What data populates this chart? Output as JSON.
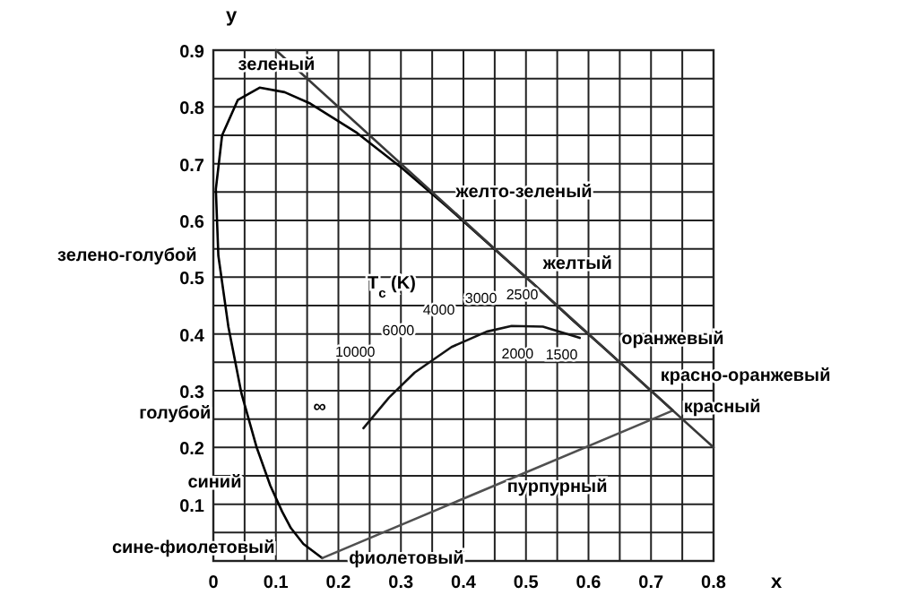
{
  "chart_data": {
    "type": "line",
    "xlabel": "x",
    "ylabel": "y",
    "xlim": [
      0,
      0.8
    ],
    "ylim": [
      0,
      0.9
    ],
    "xticks": [
      0,
      {
        "value": 0.05,
        "label": null
      },
      0.1,
      {
        "value": 0.15,
        "label": null
      },
      0.2,
      {
        "value": 0.25,
        "label": null
      },
      0.3,
      {
        "value": 0.35,
        "label": null
      },
      0.4,
      {
        "value": 0.45,
        "label": null
      },
      0.5,
      {
        "value": 0.55,
        "label": null
      },
      0.6,
      {
        "value": 0.65,
        "label": null
      },
      0.7,
      {
        "value": 0.75,
        "label": null
      },
      0.8
    ],
    "yticks": [
      {
        "value": 0,
        "label": null
      },
      {
        "value": 0.05,
        "label": null
      },
      0.1,
      {
        "value": 0.15,
        "label": null
      },
      0.2,
      {
        "value": 0.25,
        "label": null
      },
      0.3,
      {
        "value": 0.35,
        "label": null
      },
      0.4,
      {
        "value": 0.45,
        "label": null
      },
      0.5,
      {
        "value": 0.55,
        "label": null
      },
      0.6,
      {
        "value": 0.65,
        "label": null
      },
      0.7,
      {
        "value": 0.75,
        "label": null
      },
      0.8,
      {
        "value": 0.85,
        "label": null
      },
      0.9
    ],
    "grid": true,
    "marker": "none",
    "line_style": "solid",
    "series": [
      {
        "color": "#000000",
        "x": [
          0.174,
          0.144,
          0.124,
          0.11,
          0.091,
          0.069,
          0.045,
          0.024,
          0.008,
          0.004,
          0.014,
          0.039,
          0.074,
          0.114,
          0.155,
          0.23,
          0.302,
          0.373,
          0.444,
          0.513,
          0.575,
          0.627,
          0.692,
          0.719,
          0.735
        ],
        "values": [
          0.005,
          0.03,
          0.058,
          0.087,
          0.133,
          0.201,
          0.295,
          0.413,
          0.538,
          0.655,
          0.75,
          0.812,
          0.834,
          0.826,
          0.806,
          0.754,
          0.692,
          0.625,
          0.555,
          0.487,
          0.424,
          0.373,
          0.308,
          0.281,
          0.265
        ]
      },
      {
        "color": "#505050",
        "x": [
          0.174,
          0.735
        ],
        "values": [
          0.005,
          0.265
        ]
      },
      {
        "color": "#141414",
        "x": [
          0.24,
          0.281,
          0.322,
          0.381,
          0.437,
          0.477,
          0.527,
          0.586
        ],
        "values": [
          0.234,
          0.288,
          0.332,
          0.377,
          0.404,
          0.414,
          0.413,
          0.393
        ]
      },
      {
        "color": "#383838",
        "x": [
          0.1,
          0.8
        ],
        "values": [
          0.9,
          0.2
        ]
      }
    ],
    "annotations": [
      {
        "text": "зеленый",
        "x": 0.074,
        "y": 0.834
      },
      {
        "text": "желто-зеленый",
        "x": 0.385,
        "y": 0.613
      },
      {
        "text": "желтый",
        "x": 0.513,
        "y": 0.487
      },
      {
        "text": "оранжевый",
        "x": 0.627,
        "y": 0.373
      },
      {
        "text": "красно-оранжевый",
        "x": 0.692,
        "y": 0.308
      },
      {
        "text": "красный",
        "x": 0.735,
        "y": 0.265
      },
      {
        "text": "пурпурный",
        "x": 0.55,
        "y": 0.179
      },
      {
        "text": "фиолетовый",
        "x": 0.174,
        "y": 0.005
      },
      {
        "text": "сине-фиолетовый",
        "x": 0.124,
        "y": 0.058
      },
      {
        "text": "синий",
        "x": 0.091,
        "y": 0.133
      },
      {
        "text": "голубой",
        "x": 0.045,
        "y": 0.295
      },
      {
        "text": "зелено-голубой",
        "x": 0.008,
        "y": 0.538
      },
      "T$_{c}$ (K)",
      {
        "text": "10000",
        "x": 0.281,
        "y": 0.288
      },
      {
        "text": "6000",
        "x": 0.322,
        "y": 0.332
      },
      {
        "text": "4000",
        "x": 0.381,
        "y": 0.377
      },
      {
        "text": "3000",
        "x": 0.437,
        "y": 0.404
      },
      {
        "text": "2500",
        "x": 0.477,
        "y": 0.414
      },
      {
        "text": "2000",
        "x": 0.527,
        "y": 0.413
      },
      {
        "text": "1500",
        "x": 0.586,
        "y": 0.393
      },
      {
        "text": "∞",
        "x": 0.24,
        "y": 0.234
      }
    ]
  }
}
